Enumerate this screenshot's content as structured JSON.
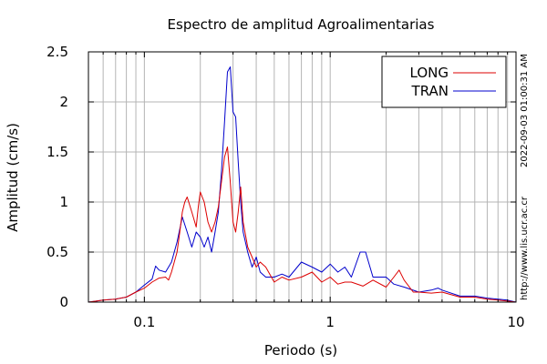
{
  "chart_data": {
    "type": "line",
    "title": "Espectro de amplitud Agroalimentarias",
    "xlabel": "Periodo (s)",
    "ylabel": "Amplitud (cm/s)",
    "xscale": "log",
    "xlim": [
      0.05,
      10
    ],
    "ylim": [
      0,
      2.5
    ],
    "x_tick_labels": [
      {
        "value": 0.1,
        "label": "0.1"
      },
      {
        "value": 1,
        "label": "1"
      },
      {
        "value": 10,
        "label": "10"
      }
    ],
    "y_tick_labels": [
      {
        "value": 0,
        "label": "0"
      },
      {
        "value": 0.5,
        "label": "0.5"
      },
      {
        "value": 1,
        "label": "1"
      },
      {
        "value": 1.5,
        "label": "1.5"
      },
      {
        "value": 2,
        "label": "2"
      },
      {
        "value": 2.5,
        "label": "2.5"
      }
    ],
    "grid": true,
    "legend_position": "top-right",
    "series": [
      {
        "name": "LONG",
        "color": "#dd0000",
        "points": [
          [
            0.05,
            0.0
          ],
          [
            0.055,
            0.01
          ],
          [
            0.06,
            0.02
          ],
          [
            0.07,
            0.03
          ],
          [
            0.08,
            0.05
          ],
          [
            0.09,
            0.1
          ],
          [
            0.1,
            0.14
          ],
          [
            0.11,
            0.2
          ],
          [
            0.12,
            0.24
          ],
          [
            0.13,
            0.25
          ],
          [
            0.135,
            0.22
          ],
          [
            0.14,
            0.3
          ],
          [
            0.15,
            0.5
          ],
          [
            0.155,
            0.7
          ],
          [
            0.16,
            0.9
          ],
          [
            0.165,
            1.0
          ],
          [
            0.17,
            1.05
          ],
          [
            0.18,
            0.9
          ],
          [
            0.19,
            0.75
          ],
          [
            0.195,
            0.95
          ],
          [
            0.2,
            1.1
          ],
          [
            0.21,
            1.0
          ],
          [
            0.22,
            0.8
          ],
          [
            0.23,
            0.7
          ],
          [
            0.24,
            0.8
          ],
          [
            0.25,
            0.95
          ],
          [
            0.26,
            1.2
          ],
          [
            0.27,
            1.45
          ],
          [
            0.28,
            1.55
          ],
          [
            0.29,
            1.2
          ],
          [
            0.3,
            0.8
          ],
          [
            0.31,
            0.7
          ],
          [
            0.32,
            0.9
          ],
          [
            0.33,
            1.15
          ],
          [
            0.34,
            0.8
          ],
          [
            0.36,
            0.55
          ],
          [
            0.38,
            0.45
          ],
          [
            0.4,
            0.35
          ],
          [
            0.42,
            0.4
          ],
          [
            0.45,
            0.35
          ],
          [
            0.5,
            0.2
          ],
          [
            0.55,
            0.25
          ],
          [
            0.6,
            0.22
          ],
          [
            0.7,
            0.25
          ],
          [
            0.8,
            0.3
          ],
          [
            0.9,
            0.2
          ],
          [
            1.0,
            0.25
          ],
          [
            1.1,
            0.18
          ],
          [
            1.2,
            0.2
          ],
          [
            1.3,
            0.2
          ],
          [
            1.5,
            0.16
          ],
          [
            1.7,
            0.22
          ],
          [
            2.0,
            0.15
          ],
          [
            2.2,
            0.25
          ],
          [
            2.35,
            0.32
          ],
          [
            2.5,
            0.22
          ],
          [
            2.8,
            0.1
          ],
          [
            3.0,
            0.1
          ],
          [
            3.5,
            0.09
          ],
          [
            4.0,
            0.1
          ],
          [
            5.0,
            0.05
          ],
          [
            6.0,
            0.05
          ],
          [
            7.0,
            0.03
          ],
          [
            8.0,
            0.02
          ],
          [
            9.0,
            0.01
          ],
          [
            10.0,
            0.0
          ]
        ]
      },
      {
        "name": "TRAN",
        "color": "#0000cc",
        "points": [
          [
            0.05,
            0.0
          ],
          [
            0.055,
            0.01
          ],
          [
            0.06,
            0.02
          ],
          [
            0.07,
            0.03
          ],
          [
            0.08,
            0.05
          ],
          [
            0.09,
            0.1
          ],
          [
            0.1,
            0.17
          ],
          [
            0.11,
            0.23
          ],
          [
            0.115,
            0.36
          ],
          [
            0.12,
            0.32
          ],
          [
            0.13,
            0.3
          ],
          [
            0.14,
            0.4
          ],
          [
            0.15,
            0.6
          ],
          [
            0.16,
            0.85
          ],
          [
            0.17,
            0.7
          ],
          [
            0.18,
            0.55
          ],
          [
            0.19,
            0.7
          ],
          [
            0.2,
            0.65
          ],
          [
            0.21,
            0.55
          ],
          [
            0.22,
            0.65
          ],
          [
            0.23,
            0.5
          ],
          [
            0.24,
            0.7
          ],
          [
            0.25,
            0.9
          ],
          [
            0.26,
            1.3
          ],
          [
            0.27,
            1.8
          ],
          [
            0.28,
            2.3
          ],
          [
            0.29,
            2.35
          ],
          [
            0.3,
            1.9
          ],
          [
            0.31,
            1.85
          ],
          [
            0.32,
            1.4
          ],
          [
            0.33,
            1.0
          ],
          [
            0.34,
            0.7
          ],
          [
            0.36,
            0.5
          ],
          [
            0.38,
            0.35
          ],
          [
            0.4,
            0.45
          ],
          [
            0.42,
            0.3
          ],
          [
            0.45,
            0.25
          ],
          [
            0.5,
            0.25
          ],
          [
            0.55,
            0.28
          ],
          [
            0.6,
            0.25
          ],
          [
            0.7,
            0.4
          ],
          [
            0.8,
            0.35
          ],
          [
            0.9,
            0.3
          ],
          [
            1.0,
            0.38
          ],
          [
            1.1,
            0.3
          ],
          [
            1.2,
            0.35
          ],
          [
            1.3,
            0.25
          ],
          [
            1.45,
            0.5
          ],
          [
            1.55,
            0.5
          ],
          [
            1.7,
            0.25
          ],
          [
            2.0,
            0.25
          ],
          [
            2.2,
            0.18
          ],
          [
            2.5,
            0.15
          ],
          [
            3.0,
            0.1
          ],
          [
            3.5,
            0.12
          ],
          [
            3.8,
            0.14
          ],
          [
            4.0,
            0.12
          ],
          [
            5.0,
            0.06
          ],
          [
            6.0,
            0.06
          ],
          [
            7.0,
            0.04
          ],
          [
            8.0,
            0.03
          ],
          [
            9.0,
            0.02
          ],
          [
            10.0,
            0.0
          ]
        ]
      }
    ],
    "side_text": {
      "timestamp": "2022-09-03 01:00:31 AM",
      "url": "http://www.lis.ucr.ac.cr"
    }
  }
}
